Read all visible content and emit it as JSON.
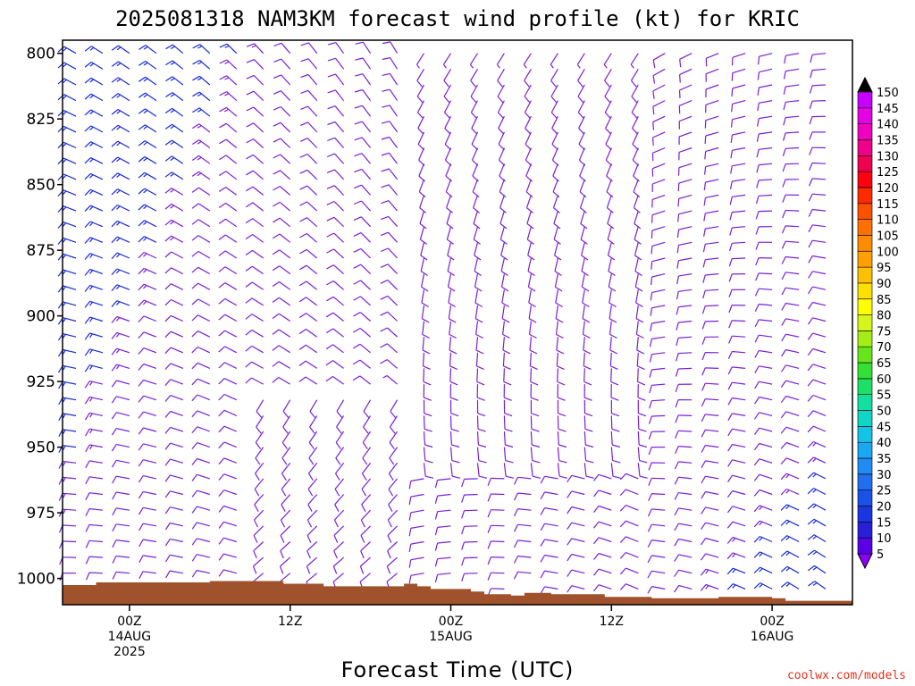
{
  "title": "2025081318 NAM3KM forecast wind profile (kt) for KRIC",
  "credit": "coolwx.com/models",
  "colors": {
    "ground": "#a0522d",
    "low_wind_barb": "#7a1fd6",
    "mid_wind_barb": "#1a2ad6",
    "credit": "#e0301e",
    "axis": "#000000"
  },
  "chart_data": {
    "type": "wind-barb-profile",
    "title": "2025081318 NAM3KM forecast wind profile (kt) for KRIC",
    "xlabel": "Forecast Time (UTC)",
    "ylabel": "",
    "units": "kt",
    "y_axis": {
      "label": "",
      "range": [
        1010,
        795
      ],
      "ticks": [
        800,
        825,
        850,
        875,
        900,
        925,
        950,
        975,
        1000
      ]
    },
    "x_axis": {
      "label": "Forecast Time (UTC)",
      "range_hours": [
        -5,
        54
      ],
      "ticks": [
        {
          "hour": 0,
          "lines": [
            "00Z",
            "14AUG",
            "2025"
          ]
        },
        {
          "hour": 12,
          "lines": [
            "12Z"
          ]
        },
        {
          "hour": 24,
          "lines": [
            "00Z",
            "15AUG"
          ]
        },
        {
          "hour": 36,
          "lines": [
            "12Z"
          ]
        },
        {
          "hour": 48,
          "lines": [
            "00Z",
            "16AUG"
          ]
        }
      ]
    },
    "colorbar": {
      "levels": [
        5,
        10,
        15,
        20,
        25,
        30,
        35,
        40,
        45,
        50,
        55,
        60,
        65,
        70,
        75,
        80,
        85,
        90,
        95,
        100,
        105,
        110,
        115,
        120,
        125,
        130,
        135,
        140,
        145,
        150
      ],
      "colors": [
        "#8b00ff",
        "#5a00e6",
        "#2a1fd9",
        "#1a36e0",
        "#1a52e8",
        "#1f6ff0",
        "#1f8cf5",
        "#1aa8f5",
        "#14c4e6",
        "#10d6c8",
        "#12e0a0",
        "#1fe066",
        "#33e033",
        "#66e61a",
        "#a3ee14",
        "#d6f51a",
        "#ffff00",
        "#ffe000",
        "#ffc000",
        "#ffa000",
        "#ff8c00",
        "#ff7000",
        "#ff5000",
        "#ff2a00",
        "#ff0010",
        "#f00050",
        "#f0008a",
        "#f000c0",
        "#e600e6",
        "#c800ff"
      ]
    },
    "ground_pressure": [
      {
        "hour": -5.0,
        "p": 1002.5
      },
      {
        "hour": -2.5,
        "p": 1001.5
      },
      {
        "hour": 6.0,
        "p": 1001.0
      },
      {
        "hour": 11.5,
        "p": 1002.0
      },
      {
        "hour": 14.5,
        "p": 1003.0
      },
      {
        "hour": 20.5,
        "p": 1002.0
      },
      {
        "hour": 21.5,
        "p": 1003.0
      },
      {
        "hour": 22.5,
        "p": 1004.0
      },
      {
        "hour": 25.5,
        "p": 1005.0
      },
      {
        "hour": 26.5,
        "p": 1006.0
      },
      {
        "hour": 28.5,
        "p": 1006.5
      },
      {
        "hour": 29.5,
        "p": 1005.5
      },
      {
        "hour": 31.5,
        "p": 1006.0
      },
      {
        "hour": 35.5,
        "p": 1007.0
      },
      {
        "hour": 39.0,
        "p": 1007.5
      },
      {
        "hour": 44.0,
        "p": 1007.0
      },
      {
        "hour": 48.0,
        "p": 1007.5
      },
      {
        "hour": 49.0,
        "p": 1008.5
      },
      {
        "hour": 54.0,
        "p": 1008.5
      }
    ]
  }
}
